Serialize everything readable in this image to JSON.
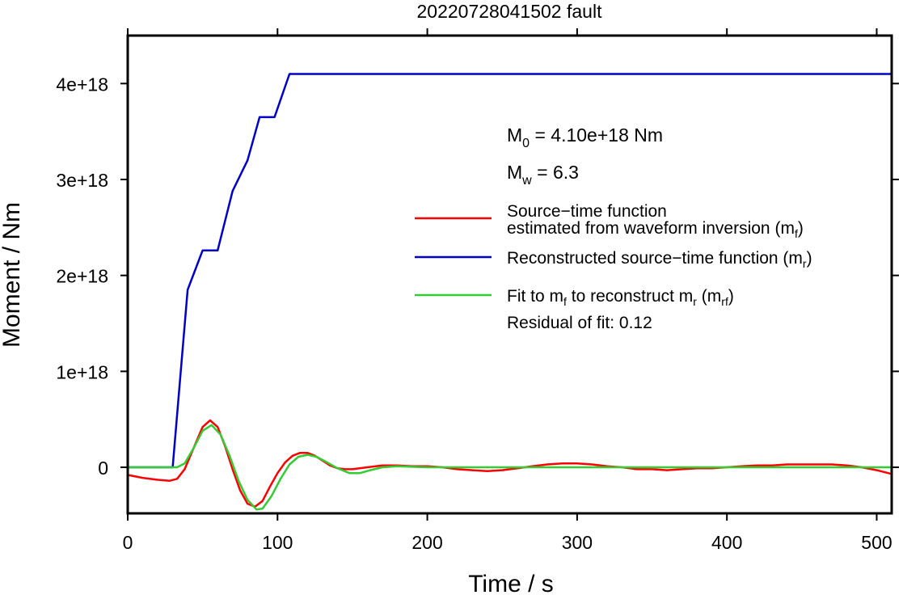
{
  "chart_data": {
    "type": "line",
    "title": "20220728041502 fault",
    "xlabel": "Time / s",
    "ylabel": "Moment / Nm",
    "xlim": [
      0,
      510
    ],
    "ylim": [
      -4.8e+17,
      4.5e+18
    ],
    "x_ticks": [
      0,
      100,
      200,
      300,
      400,
      500
    ],
    "x_tick_labels": [
      "0",
      "100",
      "200",
      "300",
      "400",
      "500"
    ],
    "y_ticks": [
      0,
      1e+18,
      2e+18,
      3e+18,
      4e+18
    ],
    "y_tick_labels": [
      "0",
      "1e+18",
      "2e+18",
      "3e+18",
      "4e+18"
    ],
    "grid": false,
    "annotations": {
      "m0": {
        "main": "M",
        "sub": "0",
        "rest": " = 4.10e+18 Nm"
      },
      "mw": {
        "main": "M",
        "sub": "w",
        "rest": " = 6.3"
      },
      "residual": "Residual of fit: 0.12"
    },
    "legend": {
      "placement": "right",
      "entries": [
        {
          "color": "#ff0000",
          "line1": "Source−time function",
          "line2": "estimated from waveform inversion (m",
          "sub": "f",
          "close": ")"
        },
        {
          "color": "#0000cc",
          "text": "Reconstructed source−time function (m",
          "sub": "r",
          "close": ")"
        },
        {
          "color": "#33cc33",
          "pre": "Fit to m",
          "sub1": "f",
          "mid": " to reconstruct m",
          "sub2": "r",
          "mid2": " (m",
          "sub3": "rf",
          "close": ")"
        }
      ]
    },
    "series": [
      {
        "color": "#0000cc",
        "x": [
          0,
          30,
          40,
          50,
          60,
          70,
          80,
          88,
          98,
          108,
          115,
          510
        ],
        "y": [
          0,
          0,
          1.85e+18,
          2.26e+18,
          2.26e+18,
          2.88e+18,
          3.2e+18,
          3.65e+18,
          3.65e+18,
          4.1e+18,
          4.1e+18,
          4.1e+18
        ]
      },
      {
        "color": "#ff0000",
        "x": [
          0,
          10,
          20,
          28,
          33,
          38,
          44,
          50,
          55,
          60,
          65,
          70,
          75,
          80,
          85,
          90,
          95,
          100,
          105,
          110,
          115,
          120,
          125,
          130,
          135,
          140,
          145,
          150,
          160,
          170,
          180,
          190,
          200,
          210,
          220,
          230,
          240,
          250,
          260,
          270,
          280,
          290,
          300,
          310,
          320,
          330,
          340,
          350,
          360,
          370,
          380,
          390,
          400,
          410,
          420,
          430,
          440,
          450,
          460,
          470,
          480,
          490,
          500,
          510
        ],
        "y": [
          -8e+16,
          -1.1e+17,
          -1.3e+17,
          -1.4e+17,
          -1.2e+17,
          -2e+16,
          2e+17,
          4.2e+17,
          4.9e+17,
          4.2e+17,
          2.2e+17,
          -2e+16,
          -2.4e+17,
          -3.8e+17,
          -4.1e+17,
          -3.5e+17,
          -2e+17,
          -6e+16,
          5e+16,
          1.2e+17,
          1.5e+17,
          1.5e+17,
          1.2e+17,
          7e+16,
          2e+16,
          -1e+16,
          -2e+16,
          -2e+16,
          0.0,
          2e+16,
          2e+16,
          1e+16,
          1e+16,
          0.0,
          -2e+16,
          -3e+16,
          -4e+16,
          -3e+16,
          -1e+16,
          1e+16,
          3e+16,
          4e+16,
          4e+16,
          3e+16,
          1e+16,
          0.0,
          -2e+16,
          -2e+16,
          -3e+16,
          -2e+16,
          -1e+16,
          -1e+16,
          0.0,
          1e+16,
          2e+16,
          2e+16,
          3e+16,
          3e+16,
          3e+16,
          3e+16,
          2e+16,
          0.0,
          -3e+16,
          -7e+16
        ]
      },
      {
        "color": "#33cc33",
        "x": [
          0,
          30,
          33,
          38,
          44,
          50,
          56,
          62,
          68,
          74,
          80,
          86,
          90,
          96,
          102,
          108,
          114,
          120,
          126,
          132,
          140,
          148,
          155,
          162,
          170,
          180,
          200,
          250,
          300,
          350,
          400,
          450,
          500,
          510
        ],
        "y": [
          0,
          0,
          0.0,
          4e+16,
          2e+17,
          3.8e+17,
          4.4e+17,
          3.4e+17,
          1.2e+17,
          -1.4e+17,
          -3.4e+17,
          -4.4e+17,
          -4.3e+17,
          -3e+17,
          -1.2e+17,
          3e+16,
          1.1e+17,
          1.3e+17,
          1.1e+17,
          6e+16,
          -1e+16,
          -6e+16,
          -6e+16,
          -3e+16,
          0.0,
          1e+16,
          0.0,
          0.0,
          0.0,
          0.0,
          0.0,
          0.0,
          0.0,
          0.0
        ]
      }
    ]
  }
}
